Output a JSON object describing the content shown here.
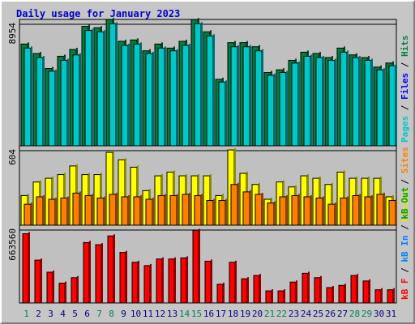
{
  "title": "Daily usage for January 2023",
  "chart_data": {
    "type": "bar",
    "categories": [
      "1",
      "2",
      "3",
      "4",
      "5",
      "6",
      "7",
      "8",
      "9",
      "10",
      "11",
      "12",
      "13",
      "14",
      "15",
      "16",
      "17",
      "18",
      "19",
      "20",
      "21",
      "22",
      "23",
      "24",
      "25",
      "26",
      "27",
      "28",
      "29",
      "30",
      "31"
    ],
    "weekend_days": [
      1,
      7,
      8,
      14,
      15,
      21,
      22,
      28,
      29
    ],
    "weekend_color": "#00805c",
    "weekday_color": "#000080",
    "panels": [
      {
        "name": "hits",
        "y_max_label": "8954",
        "y_max": 8954,
        "legend": [
          {
            "text": "Pages",
            "color": "#00c8c8"
          },
          {
            "text": "Files",
            "color": "#0000ff"
          },
          {
            "text": "Hits",
            "color": "#008040"
          }
        ],
        "series": [
          {
            "name": "Hits",
            "color": "#008040",
            "values": [
              7500,
              6800,
              5700,
              6600,
              7100,
              8800,
              8700,
              9300,
              7700,
              7800,
              7000,
              7500,
              7200,
              7700,
              9300,
              8400,
              4900,
              7600,
              7600,
              7300,
              5400,
              5600,
              6300,
              6900,
              6800,
              6500,
              7200,
              6700,
              6500,
              5800,
              6100
            ]
          },
          {
            "name": "Files",
            "color": "#0000ff",
            "values": [
              7200,
              6500,
              5500,
              6300,
              6700,
              8500,
              8400,
              9000,
              7400,
              7500,
              6800,
              7200,
              7000,
              7400,
              9000,
              8100,
              4700,
              7300,
              7300,
              7000,
              5200,
              5400,
              6100,
              6600,
              6500,
              6300,
              6900,
              6500,
              6300,
              5600,
              5900
            ]
          },
          {
            "name": "Pages",
            "color": "#00c8c8",
            "values": [
              7200,
              6500,
              5500,
              6300,
              6700,
              8500,
              8400,
              9000,
              7400,
              7500,
              6800,
              7200,
              7000,
              7400,
              9000,
              8100,
              4700,
              7300,
              7300,
              7000,
              5200,
              5400,
              6100,
              6600,
              6500,
              6300,
              6900,
              6500,
              6300,
              5600,
              5900
            ]
          }
        ]
      },
      {
        "name": "visits",
        "y_max_label": "604",
        "y_max": 604,
        "legend": [
          {
            "text": "Visits",
            "color": "#e8e800"
          },
          {
            "text": "Sites",
            "color": "#ff8000"
          }
        ],
        "series": [
          {
            "name": "Visits",
            "color": "#ffff00",
            "values": [
              240,
              350,
              380,
              410,
              480,
              410,
              410,
              590,
              530,
              470,
              280,
              400,
              430,
              400,
              400,
              400,
              240,
              610,
              420,
              330,
              210,
              350,
              310,
              400,
              380,
              330,
              430,
              380,
              380,
              380,
              230
            ]
          },
          {
            "name": "Sites",
            "color": "#ff8000",
            "values": [
              170,
              230,
              210,
              220,
              260,
              240,
              220,
              250,
              230,
              230,
              210,
              240,
              240,
              250,
              240,
              200,
              200,
              330,
              270,
              250,
              180,
              230,
              240,
              230,
              220,
              170,
              220,
              240,
              230,
              250,
              200
            ]
          }
        ]
      },
      {
        "name": "kbytes",
        "y_max_label": "663560",
        "y_max": 663560,
        "legend": [
          {
            "text": "kB F",
            "color": "#ff0000"
          },
          {
            "text": "kB In",
            "color": "#0080ff"
          },
          {
            "text": "kB Out",
            "color": "#00a000"
          }
        ],
        "series": [
          {
            "name": "kB F",
            "color": "#ff0000",
            "values": [
              630000,
              390000,
              280000,
              180000,
              230000,
              550000,
              530000,
              610000,
              460000,
              370000,
              340000,
              400000,
              400000,
              410000,
              660000,
              380000,
              170000,
              370000,
              220000,
              250000,
              110000,
              110000,
              190000,
              270000,
              230000,
              140000,
              160000,
              250000,
              200000,
              120000,
              120000
            ]
          }
        ]
      }
    ]
  }
}
